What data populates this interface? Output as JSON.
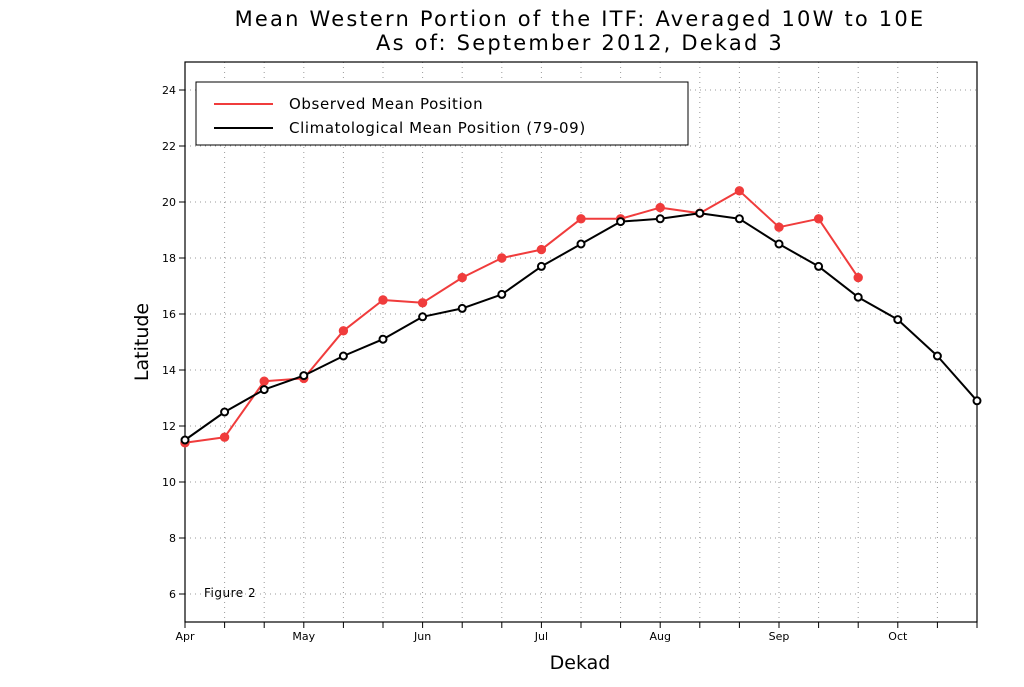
{
  "chart_data": {
    "type": "line",
    "title": "Mean Western Portion of the ITF: Averaged 10W to 10E",
    "subtitle": "As of: September 2012, Dekad 3",
    "xlabel": "Dekad",
    "ylabel": "Latitude",
    "annotation": "Figure 2",
    "xlim": [
      0,
      20
    ],
    "ylim": [
      5,
      25
    ],
    "yticks": [
      6,
      8,
      10,
      12,
      14,
      16,
      18,
      20,
      22,
      24
    ],
    "xticks": [
      {
        "label": "Apr",
        "x": 0
      },
      {
        "label": "May",
        "x": 3
      },
      {
        "label": "Jun",
        "x": 6
      },
      {
        "label": "Jul",
        "x": 9
      },
      {
        "label": "Aug",
        "x": 12
      },
      {
        "label": "Sep",
        "x": 15
      },
      {
        "label": "Oct",
        "x": 18
      }
    ],
    "grid": true,
    "legend_position": "top-left",
    "series": [
      {
        "name": "Observed Mean Position",
        "color": "#f03c3c",
        "marker": "filled-circle",
        "x": [
          0,
          1,
          2,
          3,
          4,
          5,
          6,
          7,
          8,
          9,
          10,
          11,
          12,
          13,
          14,
          15,
          16,
          17
        ],
        "y": [
          11.4,
          11.6,
          13.6,
          13.7,
          15.4,
          16.5,
          16.4,
          17.3,
          18.0,
          18.3,
          19.4,
          19.4,
          19.8,
          19.6,
          20.4,
          19.1,
          19.4,
          17.3
        ]
      },
      {
        "name": "Climatological Mean Position (79-09)",
        "color": "#000000",
        "marker": "open-circle",
        "x": [
          0,
          1,
          2,
          3,
          4,
          5,
          6,
          7,
          8,
          9,
          10,
          11,
          12,
          13,
          14,
          15,
          16,
          17,
          18,
          19,
          20
        ],
        "y": [
          11.5,
          12.5,
          13.3,
          13.8,
          14.5,
          15.1,
          15.9,
          16.2,
          16.7,
          17.7,
          18.5,
          19.3,
          19.4,
          19.6,
          19.4,
          18.5,
          17.7,
          16.6,
          15.8,
          14.5,
          12.9
        ]
      }
    ]
  }
}
